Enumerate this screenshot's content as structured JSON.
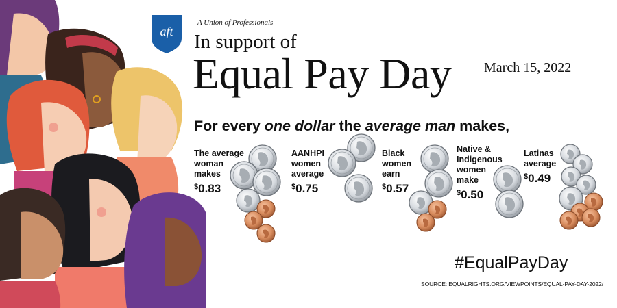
{
  "header": {
    "logo_text": "aft",
    "tagline": "A Union of Professionals",
    "title_line1": "In support of",
    "title_main": "Equal Pay Day",
    "date": "March 15, 2022"
  },
  "headline": {
    "part1": "For every ",
    "emphasis1": "one dollar",
    "part2": " the ",
    "emphasis2": "average man",
    "part3": " makes,"
  },
  "stats": [
    {
      "label": "The average\nwoman\nmakes",
      "currency": "$",
      "value": "0.83"
    },
    {
      "label": "AANHPI\nwomen\naverage",
      "currency": "$",
      "value": "0.75"
    },
    {
      "label": "Black\nwomen\nearn",
      "currency": "$",
      "value": "0.57"
    },
    {
      "label": "Native &\nIndigenous\nwomen\nmake",
      "currency": "$",
      "value": "0.50"
    },
    {
      "label": "Latinas\naverage",
      "currency": "$",
      "value": "0.49"
    }
  ],
  "footer": {
    "hashtag": "#EqualPayDay",
    "source": "SOURCE: EQUALRIGHTS.ORG/VIEWPOINTS/EQUAL-PAY-DAY-2022/"
  },
  "colors": {
    "logo_blue": "#1a5fa8",
    "quarter_silver": "#d9dde2",
    "penny_copper": "#d88c5e"
  }
}
